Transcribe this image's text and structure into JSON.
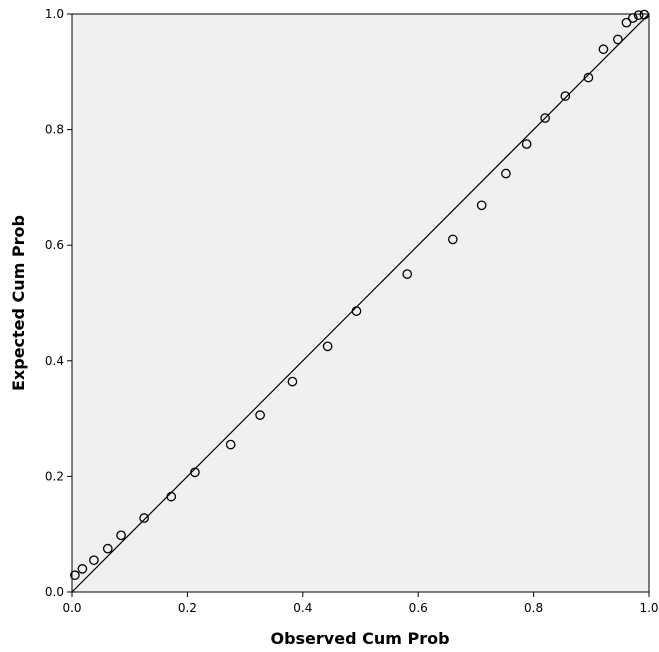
{
  "chart_data": {
    "type": "scatter",
    "title": "",
    "xlabel": "Observed Cum Prob",
    "ylabel": "Expected Cum Prob",
    "xlim": [
      0.0,
      1.0
    ],
    "ylim": [
      0.0,
      1.0
    ],
    "x_ticks": [
      "0.0",
      "0.2",
      "0.4",
      "0.6",
      "0.8",
      "1.0"
    ],
    "y_ticks": [
      "0.0",
      "0.2",
      "0.4",
      "0.6",
      "0.8",
      "1.0"
    ],
    "grid": false,
    "reference_line": {
      "from": [
        0,
        0
      ],
      "to": [
        1,
        1
      ]
    },
    "colors": {
      "plot_background": "#f0f0f0",
      "marker_stroke": "#000000",
      "line": "#000000"
    },
    "points": [
      {
        "x": 0.005,
        "y": 0.029
      },
      {
        "x": 0.018,
        "y": 0.04
      },
      {
        "x": 0.038,
        "y": 0.055
      },
      {
        "x": 0.062,
        "y": 0.075
      },
      {
        "x": 0.085,
        "y": 0.098
      },
      {
        "x": 0.125,
        "y": 0.128
      },
      {
        "x": 0.172,
        "y": 0.165
      },
      {
        "x": 0.213,
        "y": 0.207
      },
      {
        "x": 0.275,
        "y": 0.255
      },
      {
        "x": 0.326,
        "y": 0.306
      },
      {
        "x": 0.382,
        "y": 0.364
      },
      {
        "x": 0.443,
        "y": 0.425
      },
      {
        "x": 0.493,
        "y": 0.486
      },
      {
        "x": 0.581,
        "y": 0.55
      },
      {
        "x": 0.66,
        "y": 0.61
      },
      {
        "x": 0.71,
        "y": 0.669
      },
      {
        "x": 0.752,
        "y": 0.724
      },
      {
        "x": 0.788,
        "y": 0.775
      },
      {
        "x": 0.82,
        "y": 0.82
      },
      {
        "x": 0.855,
        "y": 0.858
      },
      {
        "x": 0.895,
        "y": 0.89
      },
      {
        "x": 0.921,
        "y": 0.939
      },
      {
        "x": 0.946,
        "y": 0.956
      },
      {
        "x": 0.961,
        "y": 0.985
      },
      {
        "x": 0.972,
        "y": 0.993
      },
      {
        "x": 0.982,
        "y": 0.998
      },
      {
        "x": 0.992,
        "y": 0.999
      }
    ]
  }
}
